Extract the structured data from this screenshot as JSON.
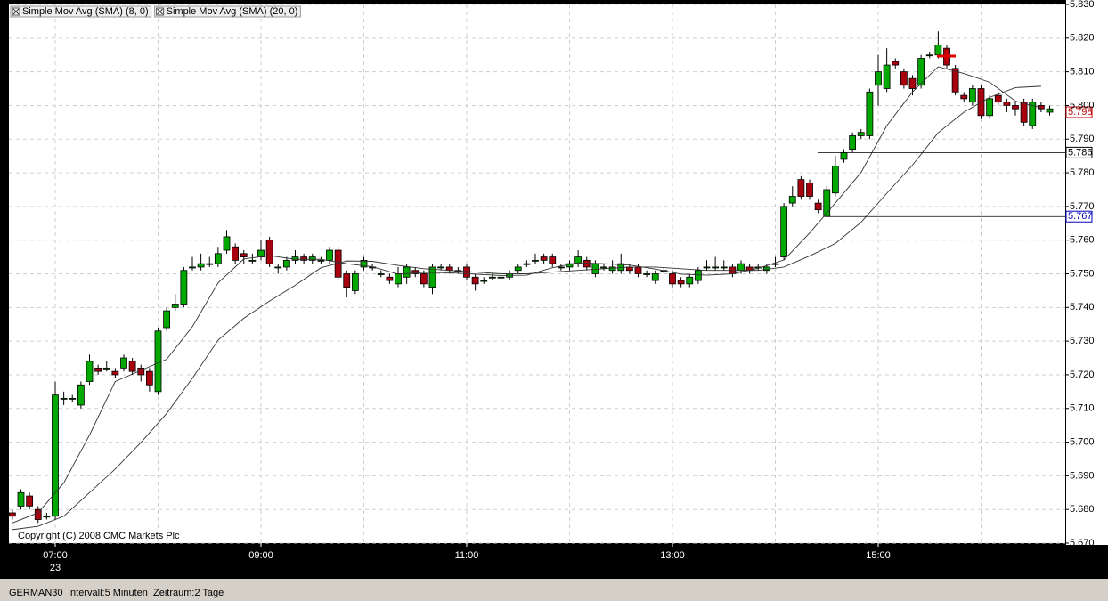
{
  "chart_data": {
    "type": "candlestick",
    "x": [
      "06:35",
      "06:40",
      "06:45",
      "06:50",
      "06:55",
      "07:00",
      "07:05",
      "07:10",
      "07:15",
      "07:20",
      "07:25",
      "07:30",
      "07:35",
      "07:40",
      "07:45",
      "07:50",
      "07:55",
      "08:00",
      "08:05",
      "08:10",
      "08:15",
      "08:20",
      "08:25",
      "08:30",
      "08:35",
      "08:40",
      "08:45",
      "08:50",
      "08:55",
      "09:00",
      "09:05",
      "09:10",
      "09:15",
      "09:20",
      "09:25",
      "09:30",
      "09:35",
      "09:40",
      "09:45",
      "09:50",
      "09:55",
      "10:00",
      "10:05",
      "10:10",
      "10:15",
      "10:20",
      "10:25",
      "10:30",
      "10:35",
      "10:40",
      "10:45",
      "10:50",
      "10:55",
      "11:00",
      "11:05",
      "11:10",
      "11:15",
      "11:20",
      "11:25",
      "11:30",
      "11:35",
      "11:40",
      "11:45",
      "11:50",
      "11:55",
      "12:00",
      "12:05",
      "12:10",
      "12:15",
      "12:20",
      "12:25",
      "12:30",
      "12:35",
      "12:40",
      "12:45",
      "12:50",
      "12:55",
      "13:00",
      "13:05",
      "13:10",
      "13:15",
      "13:20",
      "13:25",
      "13:30",
      "13:35",
      "13:40",
      "13:45",
      "13:50",
      "13:55",
      "14:00",
      "14:05",
      "14:10",
      "14:15",
      "14:20",
      "14:25",
      "14:30",
      "14:35",
      "14:40",
      "14:45",
      "14:50",
      "14:55",
      "15:00",
      "15:05",
      "15:10",
      "15:15",
      "15:20",
      "15:25",
      "15:30",
      "15:35",
      "15:40",
      "15:45",
      "15:50",
      "15:55",
      "16:00",
      "16:05",
      "16:10",
      "16:15",
      "16:20",
      "16:25",
      "16:30",
      "16:35",
      "16:40"
    ],
    "open": [
      5679,
      5681,
      5684,
      5680,
      5678,
      5678,
      5713,
      5713,
      5711,
      5718,
      5722,
      5722,
      5721,
      5722,
      5724,
      5722,
      5721,
      5715,
      5734,
      5740,
      5741,
      5752,
      5752,
      5753,
      5753,
      5757,
      5758,
      5756,
      5754,
      5755,
      5760,
      5752,
      5752,
      5754,
      5755,
      5754,
      5754,
      5754,
      5757,
      5750,
      5745,
      5752,
      5752,
      5750,
      5749,
      5747,
      5749,
      5751,
      5750,
      5746,
      5752,
      5752,
      5751,
      5752,
      5749,
      5748,
      5749,
      5749,
      5749,
      5751,
      5753,
      5754,
      5755,
      5755,
      5752,
      5752,
      5753,
      5754,
      5750,
      5752,
      5751,
      5751,
      5752,
      5752,
      5750,
      5748,
      5751,
      5750,
      5748,
      5747,
      5748,
      5752,
      5752,
      5752,
      5752,
      5751,
      5752,
      5752,
      5751,
      5753,
      5755,
      5771,
      5778,
      5777,
      5771,
      5767,
      5774,
      5784,
      5787,
      5791,
      5791,
      5806,
      5805,
      5813,
      5810,
      5808,
      5806,
      5815,
      5815,
      5817,
      5811,
      5803,
      5801,
      5805,
      5797,
      5803,
      5801,
      5800,
      5801,
      5794,
      5800,
      5798
    ],
    "high": [
      5680,
      5686,
      5685,
      5681,
      5679,
      5718,
      5715,
      5714,
      5718,
      5726,
      5723,
      5724,
      5722,
      5726,
      5725,
      5723,
      5722,
      5734,
      5740,
      5744,
      5752,
      5755,
      5756,
      5755,
      5758,
      5763,
      5759,
      5757,
      5756,
      5760,
      5761,
      5753,
      5755,
      5757,
      5756,
      5756,
      5755,
      5758,
      5758,
      5751,
      5751,
      5755,
      5753,
      5751,
      5750,
      5752,
      5753,
      5752,
      5751,
      5753,
      5753,
      5753,
      5752,
      5753,
      5750,
      5749,
      5750,
      5750,
      5751,
      5753,
      5754,
      5756,
      5756,
      5756,
      5753,
      5754,
      5757,
      5755,
      5754,
      5753,
      5754,
      5756,
      5753,
      5753,
      5751,
      5751,
      5752,
      5751,
      5749,
      5750,
      5752,
      5754,
      5755,
      5754,
      5753,
      5754,
      5753,
      5753,
      5753,
      5755,
      5771,
      5776,
      5779,
      5778,
      5772,
      5776,
      5785,
      5787,
      5792,
      5793,
      5805,
      5815,
      5817,
      5814,
      5811,
      5809,
      5815,
      5816,
      5822,
      5818,
      5812,
      5804,
      5806,
      5806,
      5803,
      5804,
      5802,
      5801,
      5802,
      5802,
      5801,
      5800
    ],
    "low": [
      5677,
      5680,
      5680,
      5676,
      5677,
      5677,
      5711,
      5712,
      5710,
      5717,
      5720,
      5721,
      5719,
      5721,
      5720,
      5718,
      5715,
      5714,
      5733,
      5739,
      5740,
      5751,
      5751,
      5752,
      5752,
      5756,
      5753,
      5753,
      5753,
      5754,
      5752,
      5750,
      5751,
      5753,
      5753,
      5753,
      5753,
      5753,
      5748,
      5743,
      5744,
      5751,
      5751,
      5749,
      5747,
      5746,
      5747,
      5749,
      5746,
      5744,
      5751,
      5750,
      5750,
      5748,
      5745,
      5747,
      5748,
      5748,
      5748,
      5750,
      5752,
      5753,
      5753,
      5752,
      5751,
      5751,
      5752,
      5751,
      5749,
      5751,
      5750,
      5750,
      5750,
      5749,
      5749,
      5747,
      5750,
      5746,
      5746,
      5746,
      5747,
      5751,
      5751,
      5751,
      5749,
      5750,
      5750,
      5751,
      5750,
      5752,
      5754,
      5770,
      5772,
      5772,
      5768,
      5767,
      5773,
      5783,
      5786,
      5790,
      5790,
      5800,
      5804,
      5811,
      5805,
      5803,
      5805,
      5814,
      5814,
      5811,
      5803,
      5801,
      5800,
      5796,
      5796,
      5800,
      5798,
      5797,
      5794,
      5793,
      5798,
      5797
    ],
    "close": [
      5678,
      5685,
      5681,
      5677,
      5678,
      5714,
      5713,
      5713,
      5717,
      5724,
      5721,
      5722,
      5720,
      5725,
      5721,
      5720,
      5717,
      5733,
      5739,
      5741,
      5751,
      5752,
      5753,
      5753,
      5756,
      5761,
      5754,
      5755,
      5754,
      5757,
      5753,
      5752,
      5754,
      5755,
      5754,
      5755,
      5754,
      5757,
      5749,
      5746,
      5750,
      5754,
      5752,
      5750,
      5748,
      5750,
      5752,
      5750,
      5747,
      5752,
      5752,
      5751,
      5751,
      5749,
      5747,
      5748,
      5749,
      5749,
      5750,
      5752,
      5753,
      5754,
      5754,
      5753,
      5752,
      5753,
      5755,
      5752,
      5753,
      5752,
      5752,
      5753,
      5751,
      5750,
      5750,
      5750,
      5751,
      5747,
      5747,
      5749,
      5751,
      5752,
      5752,
      5752,
      5750,
      5753,
      5751,
      5752,
      5752,
      5753,
      5770,
      5773,
      5773,
      5773,
      5769,
      5775,
      5782,
      5786,
      5791,
      5792,
      5804,
      5810,
      5812,
      5812,
      5806,
      5805,
      5814,
      5815,
      5818,
      5812,
      5804,
      5802,
      5805,
      5797,
      5802,
      5801,
      5800,
      5799,
      5795,
      5801,
      5799,
      5799
    ],
    "up_color": "#00a800",
    "down_color": "#a8000f",
    "series": [
      {
        "name": "Simple Mov Avg (SMA) (8, 0)",
        "color": "#333333",
        "x": [
          "06:35",
          "06:50",
          "07:05",
          "07:20",
          "07:35",
          "07:50",
          "08:05",
          "08:20",
          "08:35",
          "08:50",
          "09:05",
          "09:20",
          "09:35",
          "09:50",
          "10:05",
          "10:20",
          "10:35",
          "10:50",
          "11:05",
          "11:20",
          "11:35",
          "11:50",
          "12:05",
          "12:20",
          "12:35",
          "12:50",
          "13:05",
          "13:20",
          "13:35",
          "13:50",
          "14:05",
          "14:20",
          "14:35",
          "14:50",
          "15:05",
          "15:20",
          "15:35",
          "15:50",
          "16:05",
          "16:20",
          "16:35"
        ],
        "values": [
          5676,
          5679,
          5687.9,
          5702.1,
          5718,
          5721.3,
          5724.6,
          5734.3,
          5747.3,
          5754.4,
          5755.4,
          5754.3,
          5754.3,
          5753,
          5752.1,
          5749.9,
          5750.4,
          5750.3,
          5749.9,
          5749.5,
          5749.6,
          5751.8,
          5753.3,
          5753,
          5752.6,
          5751.4,
          5749.9,
          5749.6,
          5750,
          5751.6,
          5754.1,
          5762.1,
          5771,
          5780.1,
          5794,
          5804,
          5811.5,
          5809.5,
          5806.9,
          5801.3,
          5799.3
        ]
      },
      {
        "name": "Simple Mov Avg (SMA) (20, 0)",
        "color": "#333333",
        "x": [
          "06:35",
          "06:50",
          "07:05",
          "07:20",
          "07:35",
          "07:50",
          "08:05",
          "08:20",
          "08:35",
          "08:50",
          "09:05",
          "09:20",
          "09:35",
          "09:50",
          "10:05",
          "10:20",
          "10:35",
          "10:50",
          "11:05",
          "11:20",
          "11:35",
          "11:50",
          "12:05",
          "12:20",
          "12:35",
          "12:50",
          "13:05",
          "13:20",
          "13:35",
          "13:50",
          "14:05",
          "14:20",
          "14:35",
          "14:50",
          "15:05",
          "15:20",
          "15:35",
          "15:50",
          "16:05",
          "16:20",
          "16:35"
        ],
        "values": [
          5674,
          5675,
          5678,
          5685,
          5692,
          5699.9,
          5708.5,
          5719,
          5730.3,
          5736.8,
          5741.9,
          5746.6,
          5751.8,
          5753.8,
          5753.7,
          5752.5,
          5751.5,
          5751,
          5750.5,
          5750,
          5750,
          5750.5,
          5751,
          5751.5,
          5752,
          5752,
          5751.5,
          5751,
          5751,
          5751,
          5752,
          5755.3,
          5759,
          5765.3,
          5773.9,
          5782.3,
          5791.9,
          5798,
          5802.4,
          5805.3,
          5805.7
        ]
      }
    ],
    "ylim": [
      5670,
      5830
    ],
    "yticks": [
      {
        "value": 5670,
        "label": "5.670"
      },
      {
        "value": 5680,
        "label": "5.680"
      },
      {
        "value": 5690,
        "label": "5.690"
      },
      {
        "value": 5700,
        "label": "5.700"
      },
      {
        "value": 5710,
        "label": "5.710"
      },
      {
        "value": 5720,
        "label": "5.720"
      },
      {
        "value": 5730,
        "label": "5.730"
      },
      {
        "value": 5740,
        "label": "5.740"
      },
      {
        "value": 5750,
        "label": "5.750"
      },
      {
        "value": 5760,
        "label": "5.760"
      },
      {
        "value": 5770,
        "label": "5.770"
      },
      {
        "value": 5780,
        "label": "5.780"
      },
      {
        "value": 5790,
        "label": "5.790"
      },
      {
        "value": 5800,
        "label": "5.800"
      },
      {
        "value": 5810,
        "label": "5.810"
      },
      {
        "value": 5820,
        "label": "5.820"
      },
      {
        "value": 5830,
        "label": "5.830"
      }
    ],
    "xticks": [
      "07:00",
      "09:00",
      "11:00",
      "13:00",
      "15:00"
    ],
    "date_label": "23",
    "grid": true,
    "levels": [
      {
        "value": 5798,
        "label": "5.798",
        "color": "#c00000"
      },
      {
        "value": 5786,
        "label": "5.786",
        "color": "#000000"
      },
      {
        "value": 5767,
        "label": "5.767",
        "color": "#0000c0"
      }
    ],
    "copyright": "Copyright (C) 2008 CMC Markets Plc"
  },
  "footer": {
    "symbol": "GERMAN30",
    "interval": "Intervall:5 Minuten",
    "range": "Zeitraum:2 Tage"
  }
}
